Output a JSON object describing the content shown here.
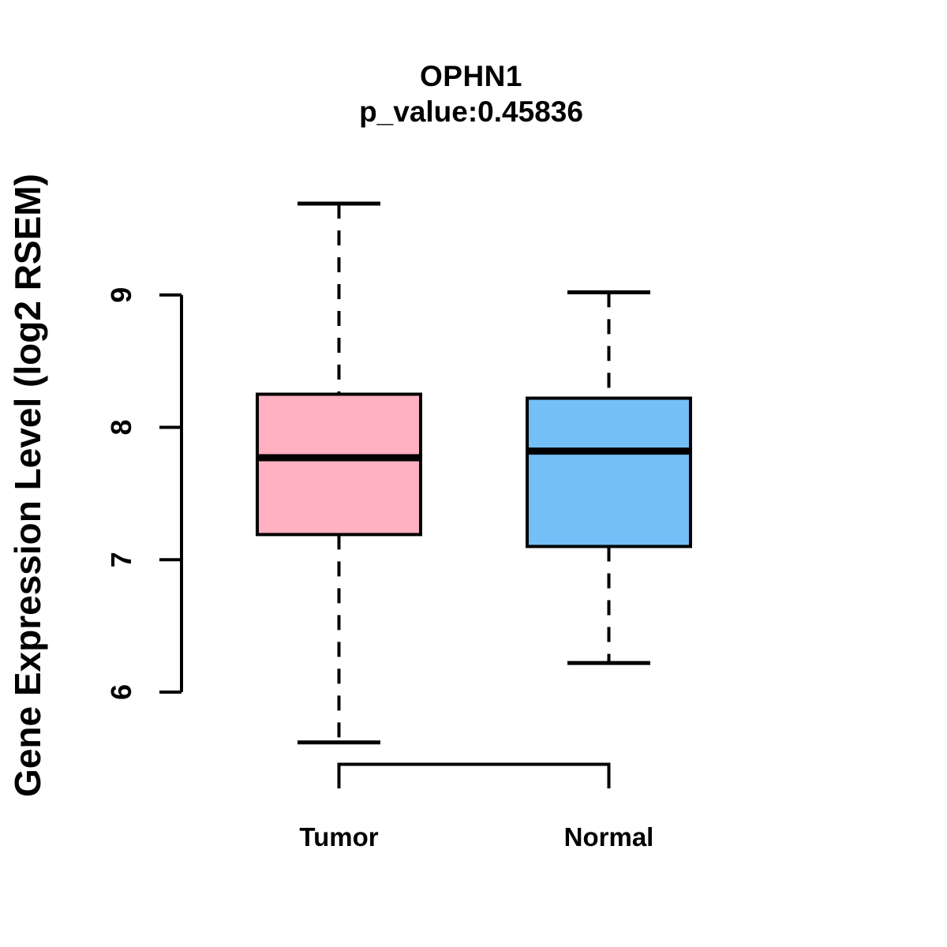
{
  "figure": {
    "background": "#FFFFFF",
    "text_color": "#000000"
  },
  "chart_data": {
    "type": "boxplot",
    "title": "OPHN1",
    "subtitle": "p_value:0.45836",
    "ylabel": "Gene Expression Level (log2 RSEM)",
    "xlabel": "",
    "categories": [
      "Tumor",
      "Normal"
    ],
    "yticks": [
      6,
      7,
      8,
      9
    ],
    "axis_range": [
      6,
      9
    ],
    "grid": false,
    "legend": false,
    "tick_labels_rotated": true,
    "series": [
      {
        "name": "Tumor",
        "color": "#FFB0C1",
        "outline_color": "#000000",
        "whisker_low": 5.62,
        "q1": 7.19,
        "median": 7.77,
        "q3": 8.25,
        "whisker_high": 9.69
      },
      {
        "name": "Normal",
        "color": "#74BFF7",
        "outline_color": "#000000",
        "whisker_low": 6.22,
        "q1": 7.1,
        "median": 7.82,
        "q3": 8.22,
        "whisker_high": 9.02
      }
    ],
    "comparison_bracket": {
      "from": "Tumor",
      "to": "Normal"
    }
  }
}
